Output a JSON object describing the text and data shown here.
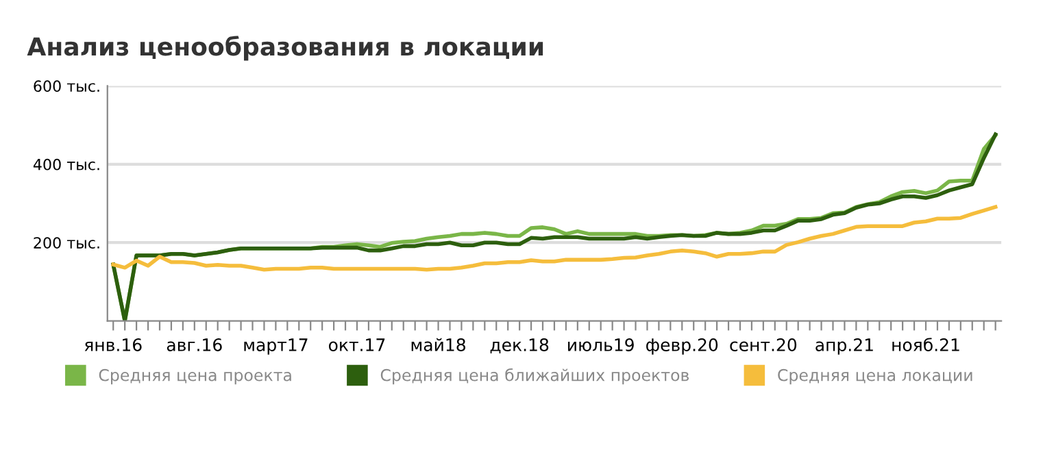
{
  "chart_data": {
    "type": "line",
    "title": "Анализ ценообразования в локации",
    "categories": [
      "янв.16",
      null,
      null,
      null,
      null,
      null,
      null,
      "авг.16",
      null,
      null,
      null,
      null,
      null,
      null,
      "март17",
      null,
      null,
      null,
      null,
      null,
      null,
      "окт.17",
      null,
      null,
      null,
      null,
      null,
      null,
      "май18",
      null,
      null,
      null,
      null,
      null,
      null,
      "дек.18",
      null,
      null,
      null,
      null,
      null,
      null,
      "июль19",
      null,
      null,
      null,
      null,
      null,
      null,
      "февр.20",
      null,
      null,
      null,
      null,
      null,
      null,
      "сент.20",
      null,
      null,
      null,
      null,
      null,
      null,
      "апр.21",
      null,
      null,
      null,
      null,
      null,
      null,
      "нояб.21",
      null,
      null,
      null,
      null,
      null,
      null
    ],
    "series": [
      {
        "name": "Средняя цена проекта",
        "color": "#7ab648",
        "values": [
          144,
          0,
          167,
          167,
          167,
          171,
          171,
          167,
          171,
          175,
          181,
          185,
          185,
          185,
          185,
          185,
          185,
          185,
          189,
          189,
          193,
          196,
          193,
          189,
          199,
          202,
          204,
          210,
          214,
          217,
          222,
          222,
          225,
          222,
          217,
          217,
          237,
          239,
          234,
          222,
          229,
          222,
          222,
          222,
          222,
          222,
          217,
          217,
          219,
          219,
          217,
          219,
          225,
          222,
          225,
          231,
          243,
          243,
          248,
          260,
          260,
          263,
          275,
          277,
          291,
          298,
          303,
          318,
          329,
          332,
          326,
          333,
          356,
          358,
          358,
          439,
          474
        ]
      },
      {
        "name": "Средняя цена ближайших проектов",
        "color": "#2d5f0e",
        "values": [
          144,
          0,
          167,
          167,
          167,
          171,
          171,
          167,
          171,
          175,
          181,
          185,
          185,
          185,
          185,
          185,
          185,
          185,
          187,
          187,
          187,
          187,
          180,
          180,
          185,
          191,
          191,
          196,
          196,
          200,
          193,
          193,
          200,
          200,
          196,
          196,
          212,
          210,
          214,
          214,
          214,
          210,
          210,
          210,
          210,
          214,
          210,
          214,
          217,
          219,
          217,
          217,
          225,
          222,
          222,
          225,
          231,
          231,
          243,
          256,
          256,
          260,
          271,
          275,
          289,
          297,
          300,
          310,
          318,
          318,
          314,
          321,
          333,
          341,
          349,
          416,
          476
        ]
      },
      {
        "name": "Средняя цена локации",
        "color": "#f5bd3c",
        "values": [
          144,
          136,
          154,
          141,
          164,
          150,
          150,
          148,
          141,
          143,
          141,
          141,
          136,
          131,
          133,
          133,
          133,
          136,
          136,
          133,
          133,
          133,
          133,
          133,
          133,
          133,
          133,
          131,
          133,
          133,
          136,
          141,
          147,
          147,
          150,
          150,
          155,
          152,
          152,
          156,
          156,
          156,
          156,
          158,
          161,
          162,
          167,
          171,
          177,
          180,
          177,
          173,
          164,
          171,
          171,
          173,
          177,
          177,
          194,
          201,
          210,
          217,
          222,
          231,
          240,
          242,
          242,
          242,
          242,
          251,
          254,
          261,
          261,
          263,
          273,
          282,
          291
        ]
      }
    ],
    "ylim": [
      0,
      600
    ],
    "yticks": [
      {
        "value": 200,
        "label": "200 тыс."
      },
      {
        "value": 400,
        "label": "400 тыс."
      },
      {
        "value": 600,
        "label": "600 тыс."
      }
    ],
    "grid": "y",
    "legend": "bottom",
    "marker": "none",
    "line_style": "solid"
  }
}
